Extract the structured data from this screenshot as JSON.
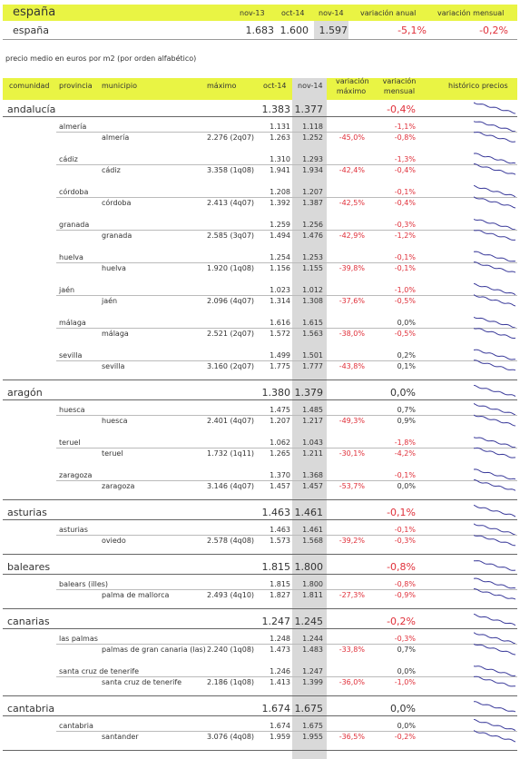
{
  "summary": {
    "region_label": "españa",
    "headers": [
      "nov-13",
      "oct-14",
      "nov-14",
      "variación anual",
      "variación mensual"
    ],
    "row": {
      "name": "españa",
      "nov13": "1.683",
      "oct14": "1.600",
      "nov14": "1.597",
      "var_anual": "-5,1%",
      "var_mensual": "-0,2%"
    }
  },
  "subtitle": "precio medio en euros por m2 (por orden alfabético)",
  "columns": {
    "comunidad": "comunidad",
    "provincia": "provincia",
    "municipio": "municipio",
    "maximo": "máximo",
    "oct14": "oct-14",
    "nov14": "nov-14",
    "var_max": "variación\nmáximo",
    "var_mensual": "variación\nmensual",
    "historico": "histórico precios"
  },
  "colors": {
    "accent": "#e9f444",
    "negative": "#e0303a",
    "shade": "#d9d9d9"
  },
  "communities": [
    {
      "name": "andalucía",
      "oct14": "1.383",
      "nov14": "1.377",
      "var_mensual": "-0,4%",
      "provinces": [
        {
          "name": "almería",
          "oct14": "1.131",
          "nov14": "1.118",
          "var_mensual": "-1,1%",
          "municipio": {
            "name": "almería",
            "maximo": "2.276 (2q07)",
            "oct14": "1.263",
            "nov14": "1.252",
            "var_max": "-45,0%",
            "var_mensual": "-0,8%"
          }
        },
        {
          "name": "cádiz",
          "oct14": "1.310",
          "nov14": "1.293",
          "var_mensual": "-1,3%",
          "municipio": {
            "name": "cádiz",
            "maximo": "3.358 (1q08)",
            "oct14": "1.941",
            "nov14": "1.934",
            "var_max": "-42,4%",
            "var_mensual": "-0,4%"
          }
        },
        {
          "name": "córdoba",
          "oct14": "1.208",
          "nov14": "1.207",
          "var_mensual": "-0,1%",
          "municipio": {
            "name": "córdoba",
            "maximo": "2.413 (4q07)",
            "oct14": "1.392",
            "nov14": "1.387",
            "var_max": "-42,5%",
            "var_mensual": "-0,4%"
          }
        },
        {
          "name": "granada",
          "oct14": "1.259",
          "nov14": "1.256",
          "var_mensual": "-0,3%",
          "municipio": {
            "name": "granada",
            "maximo": "2.585 (3q07)",
            "oct14": "1.494",
            "nov14": "1.476",
            "var_max": "-42,9%",
            "var_mensual": "-1,2%"
          }
        },
        {
          "name": "huelva",
          "oct14": "1.254",
          "nov14": "1.253",
          "var_mensual": "-0,1%",
          "municipio": {
            "name": "huelva",
            "maximo": "1.920 (1q08)",
            "oct14": "1.156",
            "nov14": "1.155",
            "var_max": "-39,8%",
            "var_mensual": "-0,1%"
          }
        },
        {
          "name": "jaén",
          "oct14": "1.023",
          "nov14": "1.012",
          "var_mensual": "-1,0%",
          "municipio": {
            "name": "jaén",
            "maximo": "2.096 (4q07)",
            "oct14": "1.314",
            "nov14": "1.308",
            "var_max": "-37,6%",
            "var_mensual": "-0,5%"
          }
        },
        {
          "name": "málaga",
          "oct14": "1.616",
          "nov14": "1.615",
          "var_mensual": "0,0%",
          "municipio": {
            "name": "málaga",
            "maximo": "2.521 (2q07)",
            "oct14": "1.572",
            "nov14": "1.563",
            "var_max": "-38,0%",
            "var_mensual": "-0,5%"
          }
        },
        {
          "name": "sevilla",
          "oct14": "1.499",
          "nov14": "1.501",
          "var_mensual": "0,2%",
          "municipio": {
            "name": "sevilla",
            "maximo": "3.160 (2q07)",
            "oct14": "1.775",
            "nov14": "1.777",
            "var_max": "-43,8%",
            "var_mensual": "0,1%"
          }
        }
      ]
    },
    {
      "name": "aragón",
      "oct14": "1.380",
      "nov14": "1.379",
      "var_mensual": "0,0%",
      "provinces": [
        {
          "name": "huesca",
          "oct14": "1.475",
          "nov14": "1.485",
          "var_mensual": "0,7%",
          "municipio": {
            "name": "huesca",
            "maximo": "2.401 (4q07)",
            "oct14": "1.207",
            "nov14": "1.217",
            "var_max": "-49,3%",
            "var_mensual": "0,9%"
          }
        },
        {
          "name": "teruel",
          "oct14": "1.062",
          "nov14": "1.043",
          "var_mensual": "-1,8%",
          "municipio": {
            "name": "teruel",
            "maximo": "1.732 (1q11)",
            "oct14": "1.265",
            "nov14": "1.211",
            "var_max": "-30,1%",
            "var_mensual": "-4,2%"
          }
        },
        {
          "name": "zaragoza",
          "oct14": "1.370",
          "nov14": "1.368",
          "var_mensual": "-0,1%",
          "municipio": {
            "name": "zaragoza",
            "maximo": "3.146 (4q07)",
            "oct14": "1.457",
            "nov14": "1.457",
            "var_max": "-53,7%",
            "var_mensual": "0,0%"
          }
        }
      ]
    },
    {
      "name": "asturias",
      "oct14": "1.463",
      "nov14": "1.461",
      "var_mensual": "-0,1%",
      "provinces": [
        {
          "name": "asturias",
          "oct14": "1.463",
          "nov14": "1.461",
          "var_mensual": "-0,1%",
          "municipio": {
            "name": "oviedo",
            "maximo": "2.578 (4q08)",
            "oct14": "1.573",
            "nov14": "1.568",
            "var_max": "-39,2%",
            "var_mensual": "-0,3%"
          }
        }
      ]
    },
    {
      "name": "baleares",
      "oct14": "1.815",
      "nov14": "1.800",
      "var_mensual": "-0,8%",
      "provinces": [
        {
          "name": "balears (illes)",
          "oct14": "1.815",
          "nov14": "1.800",
          "var_mensual": "-0,8%",
          "municipio": {
            "name": "palma de mallorca",
            "maximo": "2.493 (4q10)",
            "oct14": "1.827",
            "nov14": "1.811",
            "var_max": "-27,3%",
            "var_mensual": "-0,9%"
          }
        }
      ]
    },
    {
      "name": "canarias",
      "oct14": "1.247",
      "nov14": "1.245",
      "var_mensual": "-0,2%",
      "provinces": [
        {
          "name": "las palmas",
          "oct14": "1.248",
          "nov14": "1.244",
          "var_mensual": "-0,3%",
          "municipio": {
            "name": "palmas de gran canaria (las)",
            "maximo": "2.240 (1q08)",
            "oct14": "1.473",
            "nov14": "1.483",
            "var_max": "-33,8%",
            "var_mensual": "0,7%"
          }
        },
        {
          "name": "santa cruz de tenerife",
          "oct14": "1.246",
          "nov14": "1.247",
          "var_mensual": "0,0%",
          "municipio": {
            "name": "santa cruz de tenerife",
            "maximo": "2.186 (1q08)",
            "oct14": "1.413",
            "nov14": "1.399",
            "var_max": "-36,0%",
            "var_mensual": "-1,0%"
          }
        }
      ]
    },
    {
      "name": "cantabria",
      "oct14": "1.674",
      "nov14": "1.675",
      "var_mensual": "0,0%",
      "provinces": [
        {
          "name": "cantabria",
          "oct14": "1.674",
          "nov14": "1.675",
          "var_mensual": "0,0%",
          "municipio": {
            "name": "santander",
            "maximo": "3.076 (4q08)",
            "oct14": "1.959",
            "nov14": "1.955",
            "var_max": "-36,5%",
            "var_mensual": "-0,2%"
          }
        }
      ]
    }
  ]
}
